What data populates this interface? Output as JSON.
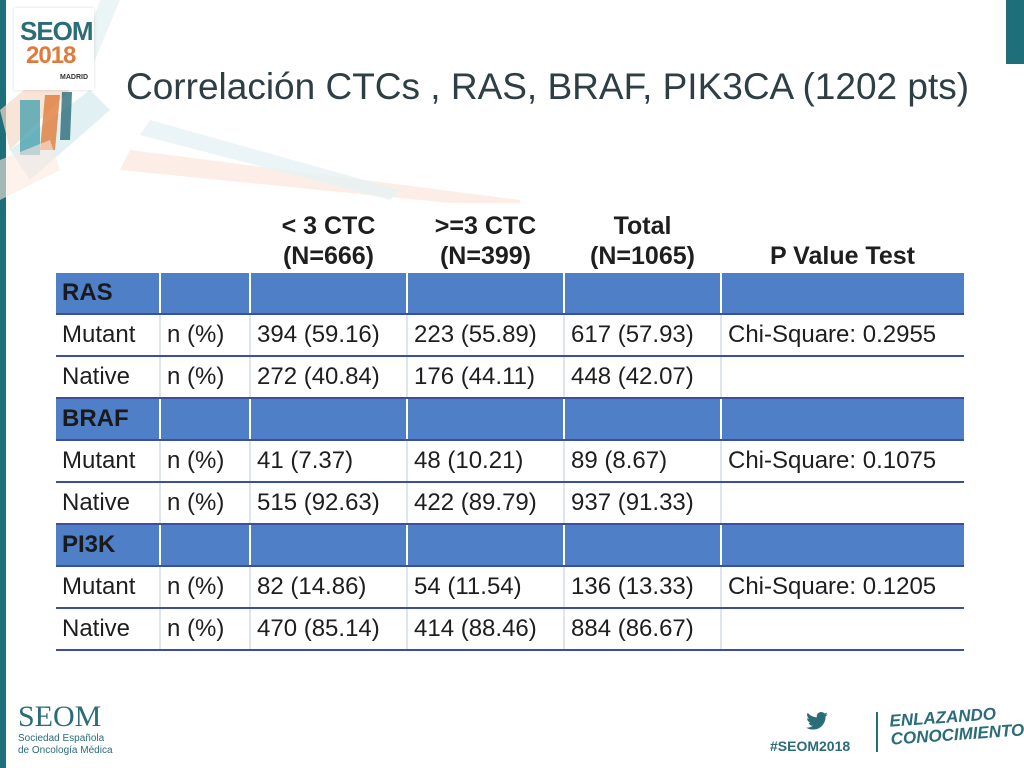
{
  "slide": {
    "title": "Correlación CTCs , RAS, BRAF, PIK3CA (1202 pts)"
  },
  "logo": {
    "name": "SEOM",
    "year": "2018",
    "city": "MADRID"
  },
  "table": {
    "headers": [
      "",
      "",
      "< 3 CTC\n(N=666)",
      ">=3 CTC\n(N=399)",
      "Total\n(N=1065)",
      "P Value Test"
    ],
    "sections": [
      {
        "name": "RAS",
        "rows": [
          {
            "label": "Mutant",
            "unit": "n (%)",
            "lt3": "394 (59.16)",
            "ge3": "223 (55.89)",
            "total": "617 (57.93)",
            "p": "Chi-Square: 0.2955"
          },
          {
            "label": "Native",
            "unit": "n (%)",
            "lt3": "272 (40.84)",
            "ge3": "176 (44.11)",
            "total": "448 (42.07)",
            "p": ""
          }
        ]
      },
      {
        "name": "BRAF",
        "rows": [
          {
            "label": "Mutant",
            "unit": "n (%)",
            "lt3": "41 (7.37)",
            "ge3": "48 (10.21)",
            "total": "89 (8.67)",
            "p": "Chi-Square: 0.1075"
          },
          {
            "label": "Native",
            "unit": "n (%)",
            "lt3": "515 (92.63)",
            "ge3": "422 (89.79)",
            "total": "937 (91.33)",
            "p": ""
          }
        ]
      },
      {
        "name": "PI3K",
        "rows": [
          {
            "label": "Mutant",
            "unit": "n (%)",
            "lt3": "82 (14.86)",
            "ge3": "54 (11.54)",
            "total": "136 (13.33)",
            "p": "Chi-Square: 0.1205"
          },
          {
            "label": "Native",
            "unit": "n (%)",
            "lt3": "470 (85.14)",
            "ge3": "414 (88.46)",
            "total": "884 (86.67)",
            "p": ""
          }
        ]
      }
    ]
  },
  "footer": {
    "org": "SEOM",
    "org_line1": "Sociedad Española",
    "org_line2": "de Oncología Médica",
    "hashtag": "#SEOM2018",
    "tagline_line1": "ENLAZANDO",
    "tagline_line2": "CONOCIMIENTO"
  },
  "colors": {
    "accent": "#1f6f7a",
    "section_fill": "#4f7fc6",
    "row_rule": "#3a4fa0"
  },
  "icons": [
    "twitter-icon"
  ]
}
